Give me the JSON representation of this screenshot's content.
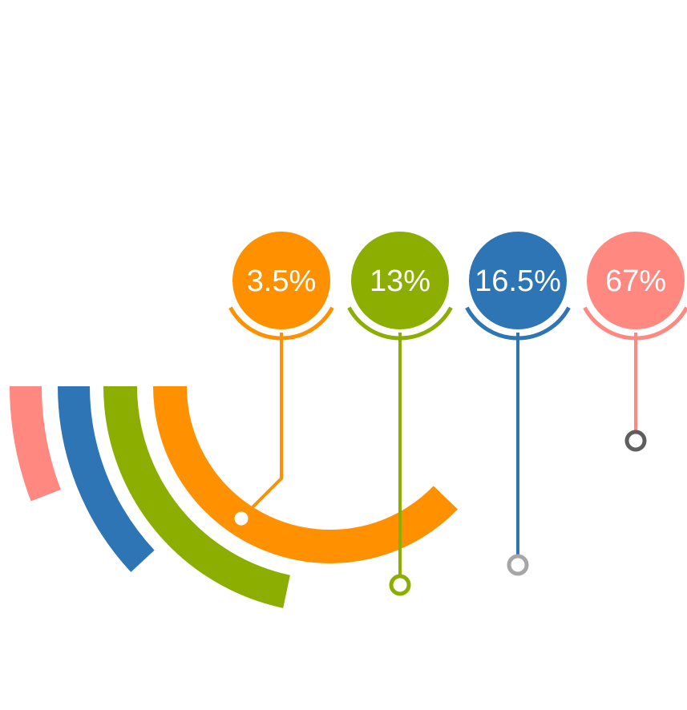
{
  "chart_data": {
    "type": "radial-bar",
    "title": "",
    "series": [
      {
        "label": "67%",
        "value": 67,
        "color": "#FF8880",
        "connector_color": "#5E5E5E"
      },
      {
        "label": "16.5%",
        "value": 16.5,
        "color": "#2E75B6",
        "connector_color": "#A6A6A6"
      },
      {
        "label": "13%",
        "value": 13,
        "color": "#8BAE00",
        "connector_color": "#8BAE00"
      },
      {
        "label": "3.5%",
        "value": 3.5,
        "color": "#FF9100",
        "connector_color": "#FF9100"
      }
    ]
  }
}
